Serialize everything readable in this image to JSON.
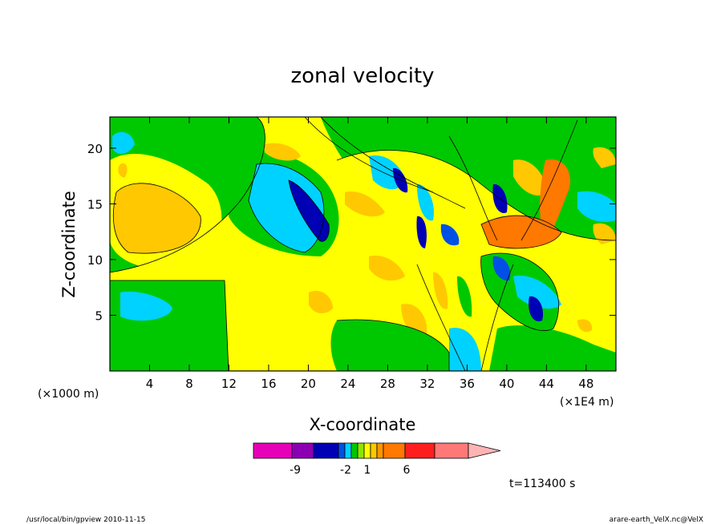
{
  "chart_data": {
    "type": "heatmap",
    "title": "zonal velocity",
    "xlabel": "X-coordinate",
    "ylabel": "Z-coordinate",
    "x_unit_left": "(×1000 m)",
    "x_unit_right": "(×1E4 m)",
    "xlim": [
      0,
      51
    ],
    "ylim": [
      0,
      22.8
    ],
    "x_ticks": [
      4,
      8,
      12,
      16,
      20,
      24,
      28,
      32,
      36,
      40,
      44,
      48
    ],
    "y_ticks": [
      5,
      10,
      15,
      20
    ],
    "time_label": "t=113400 s",
    "colorbar": {
      "colors": [
        "#e600b8",
        "#8c00b4",
        "#0000b4",
        "#0050e6",
        "#00d2ff",
        "#00c800",
        "#8ce600",
        "#ffff00",
        "#ffc800",
        "#ff9600",
        "#ff7800",
        "#ff1e1e",
        "#ff7878",
        "#ffb4b4"
      ],
      "labels": [
        "-9",
        "-2",
        "1",
        "6"
      ]
    },
    "levels_colors": {
      "strong_neg": "#0000b4",
      "neg": "#0050e6",
      "weak_neg": "#00d2ff",
      "near_zero": "#00c800",
      "weak_pos": "#ffff00",
      "pos": "#ffc800",
      "strong_pos": "#ff7800"
    }
  },
  "footer": {
    "program": "/usr/local/bin/gpview  2010-11-15",
    "source": "arare-earth_VelX.nc@VelX"
  }
}
